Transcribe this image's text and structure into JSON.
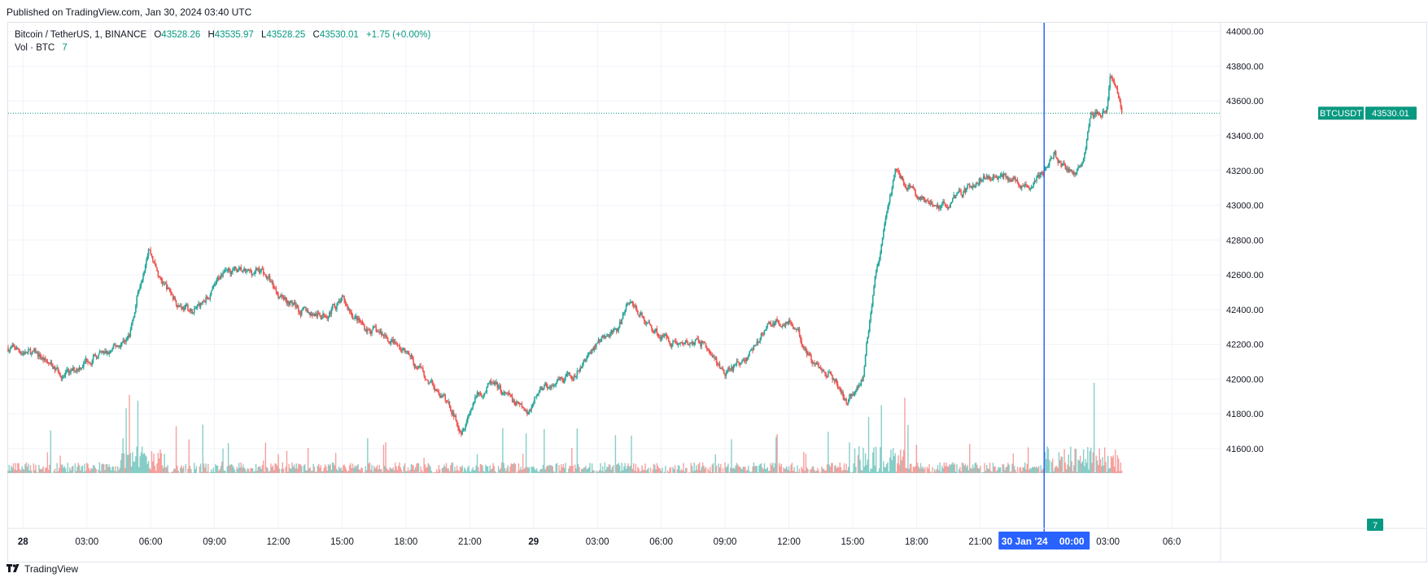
{
  "published": "Published on TradingView.com, Jan 30, 2024 03:40 UTC",
  "brand": {
    "name": "TradingView",
    "icon": "tradingview-logo-icon"
  },
  "legend": {
    "symbol": "Bitcoin / TetherUS, 1, BINANCE",
    "o_label": "O",
    "o_value": "43528.26",
    "h_label": "H",
    "h_value": "43535.97",
    "l_label": "L",
    "l_value": "43528.25",
    "c_label": "C",
    "c_value": "43530.01",
    "change": "+1.75 (+0.00%)",
    "vol_label": "Vol · BTC",
    "vol_value": "7"
  },
  "colors": {
    "up": "#26a69a",
    "down": "#ef5350",
    "grid": "#f0f3fa",
    "crosshair": "#2962ff",
    "price_tag": "#089981",
    "text": "#131722"
  },
  "price_tag": {
    "symbol": "BTCUSDT",
    "value": "43530.01"
  },
  "volume_tag": "7",
  "crosshair_label": {
    "date": "30 Jan '24",
    "time": "00:00"
  },
  "chart_data": {
    "type": "candlestick",
    "title": "Bitcoin / TetherUS, 1, BINANCE",
    "interval_minutes": 1,
    "ylim": [
      41450,
      44050
    ],
    "y_ticks": [
      "44000.00",
      "43800.00",
      "43600.00",
      "43400.00",
      "43200.00",
      "43000.00",
      "42800.00",
      "42600.00",
      "42400.00",
      "42200.00",
      "42000.00",
      "41800.00",
      "41600.00"
    ],
    "x_ticks": [
      {
        "label": "28",
        "hour": 0,
        "bold": true
      },
      {
        "label": "03:00",
        "hour": 3
      },
      {
        "label": "06:00",
        "hour": 6
      },
      {
        "label": "09:00",
        "hour": 9
      },
      {
        "label": "12:00",
        "hour": 12
      },
      {
        "label": "15:00",
        "hour": 15
      },
      {
        "label": "18:00",
        "hour": 18
      },
      {
        "label": "21:00",
        "hour": 21
      },
      {
        "label": "29",
        "hour": 24,
        "bold": true
      },
      {
        "label": "03:00",
        "hour": 27
      },
      {
        "label": "06:00",
        "hour": 30
      },
      {
        "label": "09:00",
        "hour": 33
      },
      {
        "label": "12:00",
        "hour": 36
      },
      {
        "label": "15:00",
        "hour": 39
      },
      {
        "label": "18:00",
        "hour": 42
      },
      {
        "label": "21:00",
        "hour": 45
      },
      {
        "label": "03:00",
        "hour": 51
      },
      {
        "label": "06:0",
        "hour": 54
      }
    ],
    "x_range_hours": [
      -0.7,
      56.1
    ],
    "last_hour": 51.67,
    "crosshair_hour": 48,
    "last_price": 43530.01,
    "price_path": [
      [
        -0.7,
        42180
      ],
      [
        0,
        42160
      ],
      [
        0.8,
        42130
      ],
      [
        1.5,
        42050
      ],
      [
        2.2,
        42020
      ],
      [
        3,
        42120
      ],
      [
        4,
        42140
      ],
      [
        5,
        42250
      ],
      [
        5.5,
        42560
      ],
      [
        5.9,
        42780
      ],
      [
        6.4,
        42580
      ],
      [
        7.2,
        42450
      ],
      [
        8,
        42380
      ],
      [
        9,
        42520
      ],
      [
        9.5,
        42650
      ],
      [
        10.5,
        42600
      ],
      [
        11.2,
        42630
      ],
      [
        12,
        42500
      ],
      [
        13,
        42400
      ],
      [
        14,
        42360
      ],
      [
        15,
        42450
      ],
      [
        16,
        42300
      ],
      [
        17,
        42250
      ],
      [
        18,
        42150
      ],
      [
        19,
        42000
      ],
      [
        20,
        41850
      ],
      [
        20.6,
        41720
      ],
      [
        21.2,
        41880
      ],
      [
        22,
        41970
      ],
      [
        23,
        41870
      ],
      [
        23.7,
        41800
      ],
      [
        24.3,
        41950
      ],
      [
        25,
        41960
      ],
      [
        26,
        42020
      ],
      [
        27,
        42220
      ],
      [
        28,
        42280
      ],
      [
        28.5,
        42460
      ],
      [
        29.3,
        42320
      ],
      [
        30,
        42250
      ],
      [
        31,
        42200
      ],
      [
        32,
        42210
      ],
      [
        33,
        42020
      ],
      [
        34,
        42120
      ],
      [
        35,
        42300
      ],
      [
        36,
        42350
      ],
      [
        36.6,
        42220
      ],
      [
        37.2,
        42080
      ],
      [
        38,
        42030
      ],
      [
        38.7,
        41870
      ],
      [
        39.5,
        42020
      ],
      [
        40,
        42560
      ],
      [
        40.4,
        42800
      ],
      [
        41,
        43200
      ],
      [
        42,
        43050
      ],
      [
        43,
        42980
      ],
      [
        44,
        43060
      ],
      [
        45,
        43150
      ],
      [
        46,
        43180
      ],
      [
        47.3,
        43100
      ],
      [
        48,
        43200
      ],
      [
        48.5,
        43280
      ],
      [
        49.2,
        43180
      ],
      [
        49.8,
        43230
      ],
      [
        50.2,
        43520
      ],
      [
        50.9,
        43550
      ],
      [
        51.1,
        43740
      ],
      [
        51.6,
        43560
      ],
      [
        51.67,
        43530
      ]
    ],
    "volume_units": "BTC",
    "volume_ylim": [
      0,
      300
    ]
  }
}
